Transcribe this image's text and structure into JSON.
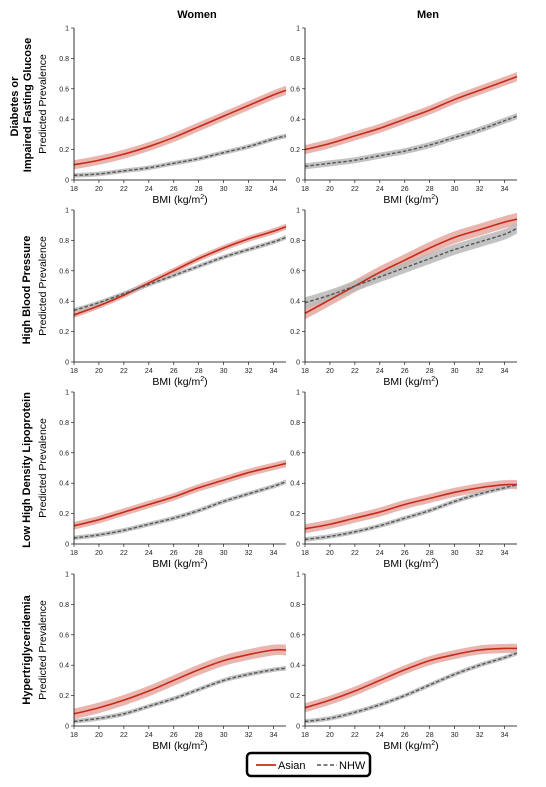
{
  "columns": [
    "Women",
    "Men"
  ],
  "rows": [
    [
      "Diabetes or",
      "Impaired Fasting Glucose"
    ],
    [
      "High Blood Pressure"
    ],
    [
      "Low High Density Lipoprotein"
    ],
    [
      "Hypertriglyceridemia"
    ]
  ],
  "legend": {
    "asian": "Asian",
    "nhw": "NHW",
    "placement": "bottom-center"
  },
  "colors": {
    "asian": "#c62b17",
    "asian_band": "#e6a7a1",
    "nhw": "#555555",
    "nhw_band": "#b9b9b9"
  },
  "chart_data": [
    {
      "type": "line",
      "panel": "Women",
      "row": "Diabetes or Impaired Fasting Glucose",
      "xlabel": "BMI (kg/m²)",
      "ylabel": "Predicted Prevalence",
      "xlim": [
        18,
        35
      ],
      "ylim": [
        0,
        1
      ],
      "xticks": [
        18,
        20,
        22,
        24,
        26,
        28,
        30,
        32,
        34
      ],
      "yticks": [
        0,
        0.2,
        0.4,
        0.6,
        0.8,
        1
      ],
      "x": [
        18,
        20,
        22,
        24,
        26,
        28,
        30,
        32,
        34,
        35
      ],
      "series": [
        {
          "name": "Asian",
          "values": [
            0.1,
            0.13,
            0.17,
            0.22,
            0.28,
            0.35,
            0.42,
            0.49,
            0.56,
            0.59
          ],
          "band": 0.03
        },
        {
          "name": "NHW",
          "values": [
            0.03,
            0.04,
            0.06,
            0.08,
            0.11,
            0.14,
            0.18,
            0.22,
            0.27,
            0.29
          ],
          "band": 0.015
        }
      ]
    },
    {
      "type": "line",
      "panel": "Men",
      "row": "Diabetes or Impaired Fasting Glucose",
      "xlabel": "BMI (kg/m²)",
      "ylabel": "",
      "xlim": [
        18,
        35
      ],
      "ylim": [
        0,
        1
      ],
      "xticks": [
        18,
        20,
        22,
        24,
        26,
        28,
        30,
        32,
        34
      ],
      "yticks": [
        0,
        0.2,
        0.4,
        0.6,
        0.8,
        1
      ],
      "x": [
        18,
        20,
        22,
        24,
        26,
        28,
        30,
        32,
        34,
        35
      ],
      "series": [
        {
          "name": "Asian",
          "values": [
            0.2,
            0.24,
            0.29,
            0.34,
            0.4,
            0.46,
            0.53,
            0.59,
            0.65,
            0.68
          ],
          "band": 0.03
        },
        {
          "name": "NHW",
          "values": [
            0.09,
            0.11,
            0.13,
            0.16,
            0.19,
            0.23,
            0.28,
            0.33,
            0.39,
            0.42
          ],
          "band": 0.02
        }
      ]
    },
    {
      "type": "line",
      "panel": "Women",
      "row": "High Blood Pressure",
      "xlabel": "BMI (kg/m²)",
      "ylabel": "Predicted Prevalence",
      "xlim": [
        18,
        35
      ],
      "ylim": [
        0,
        1
      ],
      "xticks": [
        18,
        20,
        22,
        24,
        26,
        28,
        30,
        32,
        34
      ],
      "yticks": [
        0,
        0.2,
        0.4,
        0.6,
        0.8,
        1
      ],
      "x": [
        18,
        20,
        22,
        24,
        26,
        28,
        30,
        32,
        34,
        35
      ],
      "series": [
        {
          "name": "Asian",
          "values": [
            0.31,
            0.37,
            0.44,
            0.52,
            0.6,
            0.68,
            0.75,
            0.81,
            0.86,
            0.89
          ],
          "band": 0.02
        },
        {
          "name": "NHW",
          "values": [
            0.34,
            0.39,
            0.45,
            0.51,
            0.57,
            0.63,
            0.69,
            0.74,
            0.79,
            0.82
          ],
          "band": 0.015
        }
      ]
    },
    {
      "type": "line",
      "panel": "Men",
      "row": "High Blood Pressure",
      "xlabel": "BMI (kg/m²)",
      "ylabel": "",
      "xlim": [
        18,
        35
      ],
      "ylim": [
        0,
        1
      ],
      "xticks": [
        18,
        20,
        22,
        24,
        26,
        28,
        30,
        32,
        34
      ],
      "yticks": [
        0,
        0.2,
        0.4,
        0.6,
        0.8,
        1
      ],
      "x": [
        18,
        20,
        22,
        24,
        26,
        28,
        30,
        32,
        34,
        35
      ],
      "series": [
        {
          "name": "Asian",
          "values": [
            0.32,
            0.41,
            0.5,
            0.59,
            0.67,
            0.75,
            0.82,
            0.87,
            0.92,
            0.94
          ],
          "band": 0.04
        },
        {
          "name": "NHW",
          "values": [
            0.39,
            0.44,
            0.5,
            0.56,
            0.62,
            0.68,
            0.74,
            0.79,
            0.84,
            0.88
          ],
          "band": 0.035
        }
      ]
    },
    {
      "type": "line",
      "panel": "Women",
      "row": "Low High Density Lipoprotein",
      "xlabel": "BMI (kg/m²)",
      "ylabel": "Predicted Prevalence",
      "xlim": [
        18,
        35
      ],
      "ylim": [
        0,
        1
      ],
      "xticks": [
        18,
        20,
        22,
        24,
        26,
        28,
        30,
        32,
        34
      ],
      "yticks": [
        0,
        0.2,
        0.4,
        0.6,
        0.8,
        1
      ],
      "x": [
        18,
        20,
        22,
        24,
        26,
        28,
        30,
        32,
        34,
        35
      ],
      "series": [
        {
          "name": "Asian",
          "values": [
            0.12,
            0.16,
            0.21,
            0.26,
            0.31,
            0.37,
            0.42,
            0.47,
            0.51,
            0.53
          ],
          "band": 0.025
        },
        {
          "name": "NHW",
          "values": [
            0.04,
            0.06,
            0.09,
            0.13,
            0.17,
            0.22,
            0.28,
            0.33,
            0.38,
            0.41
          ],
          "band": 0.015
        }
      ]
    },
    {
      "type": "line",
      "panel": "Men",
      "row": "Low High Density Lipoprotein",
      "xlabel": "BMI (kg/m²)",
      "ylabel": "",
      "xlim": [
        18,
        35
      ],
      "ylim": [
        0,
        1
      ],
      "xticks": [
        18,
        20,
        22,
        24,
        26,
        28,
        30,
        32,
        34
      ],
      "yticks": [
        0,
        0.2,
        0.4,
        0.6,
        0.8,
        1
      ],
      "x": [
        18,
        20,
        22,
        24,
        26,
        28,
        30,
        32,
        34,
        35
      ],
      "series": [
        {
          "name": "Asian",
          "values": [
            0.1,
            0.13,
            0.17,
            0.21,
            0.26,
            0.3,
            0.34,
            0.37,
            0.39,
            0.39
          ],
          "band": 0.03
        },
        {
          "name": "NHW",
          "values": [
            0.03,
            0.05,
            0.08,
            0.12,
            0.17,
            0.22,
            0.28,
            0.33,
            0.37,
            0.39
          ],
          "band": 0.015
        }
      ]
    },
    {
      "type": "line",
      "panel": "Women",
      "row": "Hypertriglyceridemia",
      "xlabel": "BMI (kg/m²)",
      "ylabel": "Predicted Prevalence",
      "xlim": [
        18,
        35
      ],
      "ylim": [
        0,
        1
      ],
      "xticks": [
        18,
        20,
        22,
        24,
        26,
        28,
        30,
        32,
        34
      ],
      "yticks": [
        0,
        0.2,
        0.4,
        0.6,
        0.8,
        1
      ],
      "x": [
        18,
        20,
        22,
        24,
        26,
        28,
        30,
        32,
        34,
        35
      ],
      "series": [
        {
          "name": "Asian",
          "values": [
            0.08,
            0.12,
            0.17,
            0.23,
            0.3,
            0.37,
            0.43,
            0.47,
            0.5,
            0.5
          ],
          "band": 0.035
        },
        {
          "name": "NHW",
          "values": [
            0.03,
            0.05,
            0.08,
            0.13,
            0.18,
            0.24,
            0.3,
            0.34,
            0.37,
            0.38
          ],
          "band": 0.015
        }
      ]
    },
    {
      "type": "line",
      "panel": "Men",
      "row": "Hypertriglyceridemia",
      "xlabel": "BMI (kg/m²)",
      "ylabel": "",
      "xlim": [
        18,
        35
      ],
      "ylim": [
        0,
        1
      ],
      "xticks": [
        18,
        20,
        22,
        24,
        26,
        28,
        30,
        32,
        34
      ],
      "yticks": [
        0,
        0.2,
        0.4,
        0.6,
        0.8,
        1
      ],
      "x": [
        18,
        20,
        22,
        24,
        26,
        28,
        30,
        32,
        34,
        35
      ],
      "series": [
        {
          "name": "Asian",
          "values": [
            0.12,
            0.17,
            0.23,
            0.3,
            0.37,
            0.43,
            0.47,
            0.5,
            0.51,
            0.51
          ],
          "band": 0.03
        },
        {
          "name": "NHW",
          "values": [
            0.03,
            0.05,
            0.09,
            0.14,
            0.2,
            0.27,
            0.34,
            0.4,
            0.45,
            0.48
          ],
          "band": 0.015
        }
      ]
    }
  ]
}
